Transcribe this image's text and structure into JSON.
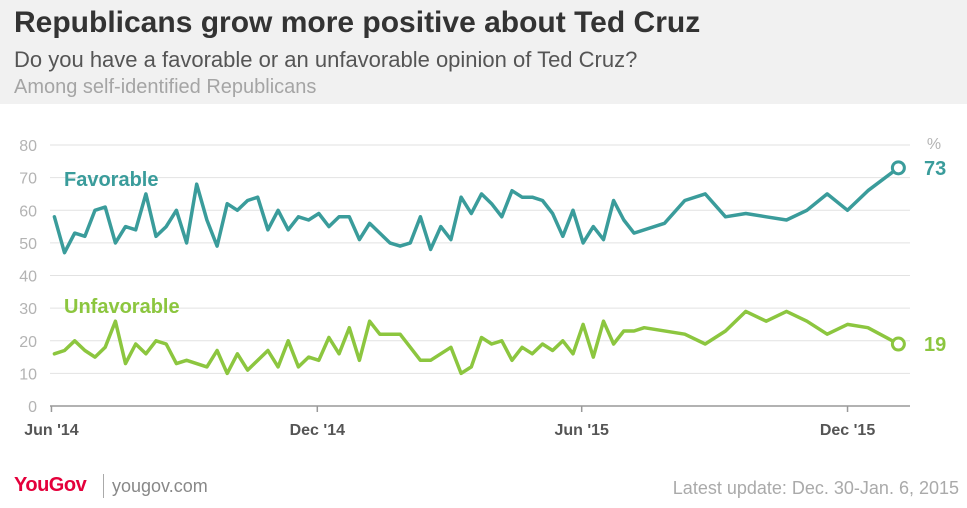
{
  "header": {
    "title": "Republicans grow more positive about Ted Cruz",
    "subtitle": "Do you have a favorable or an unfavorable opinion of Ted Cruz?",
    "subtitle2": "Among self-identified Republicans"
  },
  "footer": {
    "logo": "YouGov",
    "site": "yougov.com",
    "update": "Latest update: Dec. 30-Jan. 6, 2015"
  },
  "colors": {
    "favorable": "#3a9c9b",
    "unfavorable": "#8cc63f",
    "grid": "#e2e2e2",
    "tick": "#b3b3b3",
    "axis": "#999999",
    "xlabel": "#555555"
  },
  "chart_data": {
    "type": "line",
    "unit_label": "%",
    "ylim": [
      0,
      80
    ],
    "yticks": [
      0,
      10,
      20,
      30,
      40,
      50,
      60,
      70,
      80
    ],
    "xlim": [
      "2014-05-31",
      "2016-01-13"
    ],
    "xticks": [
      {
        "date": "2014-06-01",
        "label": "Jun '14"
      },
      {
        "date": "2014-12-01",
        "label": "Dec '14"
      },
      {
        "date": "2015-06-01",
        "label": "Jun '15"
      },
      {
        "date": "2015-12-01",
        "label": "Dec '15"
      }
    ],
    "grid": true,
    "series": [
      {
        "name": "Favorable",
        "color": "#3a9c9b",
        "end_label": "73",
        "points": [
          [
            "2014-06-03",
            58
          ],
          [
            "2014-06-10",
            47
          ],
          [
            "2014-06-17",
            53
          ],
          [
            "2014-06-24",
            52
          ],
          [
            "2014-07-01",
            60
          ],
          [
            "2014-07-08",
            61
          ],
          [
            "2014-07-15",
            50
          ],
          [
            "2014-07-22",
            55
          ],
          [
            "2014-07-29",
            54
          ],
          [
            "2014-08-05",
            65
          ],
          [
            "2014-08-12",
            52
          ],
          [
            "2014-08-19",
            55
          ],
          [
            "2014-08-26",
            60
          ],
          [
            "2014-09-02",
            50
          ],
          [
            "2014-09-09",
            68
          ],
          [
            "2014-09-16",
            57
          ],
          [
            "2014-09-23",
            49
          ],
          [
            "2014-09-30",
            62
          ],
          [
            "2014-10-07",
            60
          ],
          [
            "2014-10-14",
            63
          ],
          [
            "2014-10-21",
            64
          ],
          [
            "2014-10-28",
            54
          ],
          [
            "2014-11-04",
            60
          ],
          [
            "2014-11-11",
            54
          ],
          [
            "2014-11-18",
            58
          ],
          [
            "2014-11-25",
            57
          ],
          [
            "2014-12-02",
            59
          ],
          [
            "2014-12-09",
            55
          ],
          [
            "2014-12-16",
            58
          ],
          [
            "2014-12-23",
            58
          ],
          [
            "2014-12-30",
            51
          ],
          [
            "2015-01-06",
            56
          ],
          [
            "2015-01-13",
            53
          ],
          [
            "2015-01-20",
            50
          ],
          [
            "2015-01-27",
            49
          ],
          [
            "2015-02-03",
            50
          ],
          [
            "2015-02-10",
            58
          ],
          [
            "2015-02-17",
            48
          ],
          [
            "2015-02-24",
            55
          ],
          [
            "2015-03-03",
            51
          ],
          [
            "2015-03-10",
            64
          ],
          [
            "2015-03-17",
            59
          ],
          [
            "2015-03-24",
            65
          ],
          [
            "2015-03-31",
            62
          ],
          [
            "2015-04-07",
            58
          ],
          [
            "2015-04-14",
            66
          ],
          [
            "2015-04-21",
            64
          ],
          [
            "2015-04-28",
            64
          ],
          [
            "2015-05-05",
            63
          ],
          [
            "2015-05-12",
            59
          ],
          [
            "2015-05-19",
            52
          ],
          [
            "2015-05-26",
            60
          ],
          [
            "2015-06-02",
            50
          ],
          [
            "2015-06-09",
            55
          ],
          [
            "2015-06-16",
            51
          ],
          [
            "2015-06-23",
            63
          ],
          [
            "2015-06-30",
            57
          ],
          [
            "2015-07-07",
            53
          ],
          [
            "2015-07-28",
            56
          ],
          [
            "2015-08-11",
            63
          ],
          [
            "2015-08-25",
            65
          ],
          [
            "2015-09-08",
            58
          ],
          [
            "2015-09-22",
            59
          ],
          [
            "2015-10-06",
            58
          ],
          [
            "2015-10-20",
            57
          ],
          [
            "2015-11-03",
            60
          ],
          [
            "2015-11-17",
            65
          ],
          [
            "2015-12-01",
            60
          ],
          [
            "2015-12-15",
            66
          ],
          [
            "2016-01-05",
            73
          ]
        ]
      },
      {
        "name": "Unfavorable",
        "color": "#8cc63f",
        "end_label": "19",
        "points": [
          [
            "2014-06-03",
            16
          ],
          [
            "2014-06-10",
            17
          ],
          [
            "2014-06-17",
            20
          ],
          [
            "2014-06-24",
            17
          ],
          [
            "2014-07-01",
            15
          ],
          [
            "2014-07-08",
            18
          ],
          [
            "2014-07-15",
            26
          ],
          [
            "2014-07-22",
            13
          ],
          [
            "2014-07-29",
            19
          ],
          [
            "2014-08-05",
            16
          ],
          [
            "2014-08-12",
            20
          ],
          [
            "2014-08-19",
            19
          ],
          [
            "2014-08-26",
            13
          ],
          [
            "2014-09-02",
            14
          ],
          [
            "2014-09-16",
            12
          ],
          [
            "2014-09-23",
            17
          ],
          [
            "2014-09-30",
            10
          ],
          [
            "2014-10-07",
            16
          ],
          [
            "2014-10-14",
            11
          ],
          [
            "2014-10-28",
            17
          ],
          [
            "2014-11-04",
            12
          ],
          [
            "2014-11-11",
            20
          ],
          [
            "2014-11-18",
            12
          ],
          [
            "2014-11-25",
            15
          ],
          [
            "2014-12-02",
            14
          ],
          [
            "2014-12-09",
            21
          ],
          [
            "2014-12-16",
            16
          ],
          [
            "2014-12-23",
            24
          ],
          [
            "2014-12-30",
            14
          ],
          [
            "2015-01-06",
            26
          ],
          [
            "2015-01-13",
            22
          ],
          [
            "2015-01-27",
            22
          ],
          [
            "2015-02-03",
            18
          ],
          [
            "2015-02-10",
            14
          ],
          [
            "2015-02-17",
            14
          ],
          [
            "2015-03-03",
            18
          ],
          [
            "2015-03-10",
            10
          ],
          [
            "2015-03-17",
            12
          ],
          [
            "2015-03-24",
            21
          ],
          [
            "2015-03-31",
            19
          ],
          [
            "2015-04-07",
            20
          ],
          [
            "2015-04-14",
            14
          ],
          [
            "2015-04-21",
            18
          ],
          [
            "2015-04-28",
            16
          ],
          [
            "2015-05-05",
            19
          ],
          [
            "2015-05-12",
            17
          ],
          [
            "2015-05-19",
            20
          ],
          [
            "2015-05-26",
            16
          ],
          [
            "2015-06-02",
            25
          ],
          [
            "2015-06-09",
            15
          ],
          [
            "2015-06-16",
            26
          ],
          [
            "2015-06-23",
            19
          ],
          [
            "2015-06-30",
            23
          ],
          [
            "2015-07-07",
            23
          ],
          [
            "2015-07-14",
            24
          ],
          [
            "2015-08-11",
            22
          ],
          [
            "2015-08-25",
            19
          ],
          [
            "2015-09-08",
            23
          ],
          [
            "2015-09-22",
            29
          ],
          [
            "2015-10-06",
            26
          ],
          [
            "2015-10-20",
            29
          ],
          [
            "2015-11-03",
            26
          ],
          [
            "2015-11-17",
            22
          ],
          [
            "2015-12-01",
            25
          ],
          [
            "2015-12-15",
            24
          ],
          [
            "2016-01-05",
            19
          ]
        ]
      }
    ]
  }
}
